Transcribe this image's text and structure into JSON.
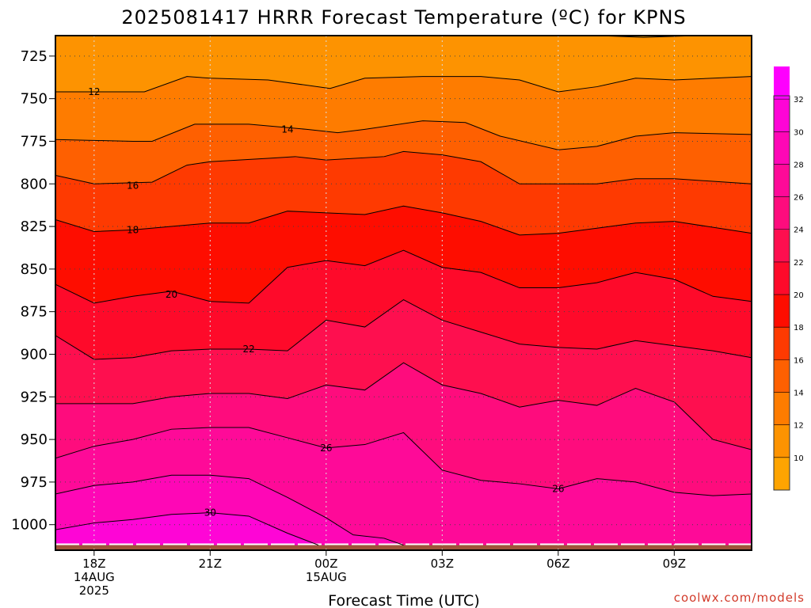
{
  "title": "2025081417 HRRR Forecast Temperature (ºC) for KPNS",
  "credit": "coolwx.com/models",
  "chart_data": {
    "type": "heatmap",
    "subtype": "filled-contour time-height cross section",
    "title": "2025081417 HRRR Forecast Temperature (ºC) for KPNS",
    "xlabel": "Forecast Time (UTC)",
    "ylabel": "",
    "x_axis": {
      "range_hours_from_18Z": [
        -1,
        17
      ],
      "ticks": [
        {
          "hour": 0,
          "lines": [
            "18Z",
            "14AUG",
            "2025"
          ]
        },
        {
          "hour": 3,
          "lines": [
            "21Z"
          ]
        },
        {
          "hour": 6,
          "lines": [
            "00Z",
            "15AUG"
          ]
        },
        {
          "hour": 9,
          "lines": [
            "03Z"
          ]
        },
        {
          "hour": 12,
          "lines": [
            "06Z"
          ]
        },
        {
          "hour": 15,
          "lines": [
            "09Z"
          ]
        }
      ]
    },
    "y_axis": {
      "unit": "hPa",
      "range": [
        1015,
        713
      ],
      "ticks": [
        725,
        750,
        775,
        800,
        825,
        850,
        875,
        900,
        925,
        950,
        975,
        1000
      ]
    },
    "grid": "dotted",
    "colorbar": {
      "placement": "right",
      "bins": [
        {
          "upper": 10,
          "color": "#fea401"
        },
        {
          "upper": 12,
          "color": "#fd9301"
        },
        {
          "upper": 14,
          "color": "#fe7c00"
        },
        {
          "upper": 16,
          "color": "#fe6001"
        },
        {
          "upper": 18,
          "color": "#fe3a01"
        },
        {
          "upper": 20,
          "color": "#fe0d00"
        },
        {
          "upper": 22,
          "color": "#fe0a2a"
        },
        {
          "upper": 24,
          "color": "#fe0f4f"
        },
        {
          "upper": 26,
          "color": "#fe0c7d"
        },
        {
          "upper": 28,
          "color": "#fe0a98"
        },
        {
          "upper": 30,
          "color": "#fe07b6"
        },
        {
          "upper": 32,
          "color": "#fe05d6"
        },
        {
          "upper": 34,
          "color": "#fe00fe"
        }
      ],
      "labels": [
        10,
        12,
        14,
        16,
        18,
        20,
        22,
        24,
        26,
        28,
        30,
        32
      ]
    },
    "ground": {
      "color": "#a0543a",
      "pressure_approx": 1012
    },
    "contours": [
      {
        "value": 10,
        "label": "",
        "points": [
          [
            9.5,
            713
          ],
          [
            13.0,
            713
          ],
          [
            14.2,
            714
          ],
          [
            15.6,
            713
          ]
        ]
      },
      {
        "value": 12,
        "label": "12",
        "label_at": [
          0.0,
          746
        ],
        "points": [
          [
            -1,
            746
          ],
          [
            0.3,
            746
          ],
          [
            1.3,
            746
          ],
          [
            2.4,
            737
          ],
          [
            3.0,
            738
          ],
          [
            4.5,
            739
          ],
          [
            6.1,
            744
          ],
          [
            7.0,
            738
          ],
          [
            8.5,
            737
          ],
          [
            10.0,
            737
          ],
          [
            11.0,
            739
          ],
          [
            12.0,
            746
          ],
          [
            13.0,
            743
          ],
          [
            14.0,
            738
          ],
          [
            15.0,
            739
          ],
          [
            17,
            737
          ]
        ]
      },
      {
        "value": 14,
        "label": "14",
        "label_at": [
          5.0,
          768
        ],
        "points": [
          [
            -1,
            774
          ],
          [
            1.0,
            775
          ],
          [
            1.5,
            775
          ],
          [
            2.6,
            765
          ],
          [
            4.0,
            765
          ],
          [
            5.5,
            768
          ],
          [
            6.3,
            770
          ],
          [
            7.0,
            768
          ],
          [
            8.5,
            763
          ],
          [
            9.6,
            764
          ],
          [
            10.5,
            772
          ],
          [
            12.0,
            780
          ],
          [
            13.0,
            778
          ],
          [
            14.0,
            772
          ],
          [
            15.0,
            770
          ],
          [
            17,
            771
          ]
        ]
      },
      {
        "value": 16,
        "label": "16",
        "label_at": [
          1.0,
          801
        ],
        "points": [
          [
            -1,
            795
          ],
          [
            0.0,
            800
          ],
          [
            1.5,
            799
          ],
          [
            2.4,
            789
          ],
          [
            3.0,
            787
          ],
          [
            4.5,
            785
          ],
          [
            5.2,
            784
          ],
          [
            6.0,
            786
          ],
          [
            7.5,
            784
          ],
          [
            8.0,
            781
          ],
          [
            9.0,
            783
          ],
          [
            10.0,
            787
          ],
          [
            11.0,
            800
          ],
          [
            12.0,
            800
          ],
          [
            13.0,
            800
          ],
          [
            14.0,
            797
          ],
          [
            15.0,
            797
          ],
          [
            17,
            800
          ]
        ]
      },
      {
        "value": 18,
        "label": "18",
        "label_at": [
          1.0,
          827
        ],
        "points": [
          [
            -1,
            821
          ],
          [
            0.0,
            828
          ],
          [
            1.0,
            827
          ],
          [
            2.0,
            825
          ],
          [
            3.0,
            823
          ],
          [
            4.0,
            823
          ],
          [
            5.0,
            816
          ],
          [
            6.0,
            817
          ],
          [
            7.0,
            818
          ],
          [
            8.0,
            813
          ],
          [
            9.0,
            817
          ],
          [
            10.0,
            822
          ],
          [
            11.0,
            830
          ],
          [
            12.0,
            829
          ],
          [
            13.0,
            826
          ],
          [
            14.0,
            823
          ],
          [
            15.0,
            822
          ],
          [
            17,
            829
          ]
        ]
      },
      {
        "value": 20,
        "label": "20",
        "label_at": [
          2.0,
          865
        ],
        "points": [
          [
            -1,
            859
          ],
          [
            0.0,
            870
          ],
          [
            1.0,
            866
          ],
          [
            2.0,
            863
          ],
          [
            3.0,
            869
          ],
          [
            4.0,
            870
          ],
          [
            5.0,
            849
          ],
          [
            6.0,
            845
          ],
          [
            7.0,
            848
          ],
          [
            8.0,
            839
          ],
          [
            9.0,
            849
          ],
          [
            10.0,
            852
          ],
          [
            11.0,
            861
          ],
          [
            12.0,
            861
          ],
          [
            13.0,
            858
          ],
          [
            14.0,
            852
          ],
          [
            15.0,
            856
          ],
          [
            16.0,
            866
          ],
          [
            17,
            869
          ]
        ]
      },
      {
        "value": 22,
        "label": "22",
        "label_at": [
          4.0,
          897
        ],
        "points": [
          [
            -1,
            889
          ],
          [
            0.0,
            903
          ],
          [
            1.0,
            902
          ],
          [
            2.0,
            898
          ],
          [
            3.0,
            897
          ],
          [
            4.0,
            897
          ],
          [
            5.0,
            898
          ],
          [
            6.0,
            880
          ],
          [
            7.0,
            884
          ],
          [
            8.0,
            868
          ],
          [
            9.0,
            880
          ],
          [
            10.0,
            887
          ],
          [
            11.0,
            894
          ],
          [
            12.0,
            896
          ],
          [
            13.0,
            897
          ],
          [
            14.0,
            892
          ],
          [
            15.0,
            895
          ],
          [
            16.0,
            898
          ],
          [
            17,
            902
          ]
        ]
      },
      {
        "value": 24,
        "label": "",
        "points": [
          [
            -1,
            929
          ],
          [
            1.0,
            929
          ],
          [
            2.0,
            925
          ],
          [
            3.0,
            923
          ],
          [
            4.0,
            923
          ],
          [
            5.0,
            926
          ],
          [
            6.0,
            918
          ],
          [
            7.0,
            921
          ],
          [
            8.0,
            905
          ],
          [
            9.0,
            918
          ],
          [
            10.0,
            923
          ],
          [
            11.0,
            931
          ],
          [
            12.0,
            927
          ],
          [
            13.0,
            930
          ],
          [
            14.0,
            920
          ],
          [
            15.0,
            928
          ],
          [
            16.0,
            950
          ],
          [
            17,
            956
          ]
        ]
      },
      {
        "value": 26,
        "label": "26",
        "label_at": [
          6.0,
          955
        ],
        "points": [
          [
            -1,
            961
          ],
          [
            0.0,
            954
          ],
          [
            1.0,
            950
          ],
          [
            2.0,
            944
          ],
          [
            3.0,
            943
          ],
          [
            4.0,
            943
          ],
          [
            5.0,
            949
          ],
          [
            6.0,
            955
          ],
          [
            7.0,
            953
          ],
          [
            8.0,
            946
          ],
          [
            9.0,
            968
          ],
          [
            10.0,
            974
          ],
          [
            11.0,
            976
          ],
          [
            12.0,
            979
          ],
          [
            13.0,
            973
          ],
          [
            14.0,
            975
          ],
          [
            15.0,
            981
          ],
          [
            16.0,
            983
          ],
          [
            17,
            982
          ]
        ]
      },
      {
        "value": 26,
        "label": "26",
        "label_at": [
          12.0,
          979
        ],
        "points": []
      },
      {
        "value": 28,
        "label": "",
        "points": [
          [
            -1,
            982
          ],
          [
            0.0,
            977
          ],
          [
            1.0,
            975
          ],
          [
            2.0,
            971
          ],
          [
            3.0,
            971
          ],
          [
            4.0,
            973
          ],
          [
            5.0,
            984
          ],
          [
            6.0,
            996
          ],
          [
            6.7,
            1006
          ],
          [
            7.5,
            1008
          ],
          [
            8.0,
            1012
          ]
        ]
      },
      {
        "value": 30,
        "label": "30",
        "label_at": [
          3.0,
          993
        ],
        "points": [
          [
            -1,
            1003
          ],
          [
            0.0,
            999
          ],
          [
            1.0,
            997
          ],
          [
            2.0,
            994
          ],
          [
            3.0,
            993
          ],
          [
            4.0,
            995
          ],
          [
            5.0,
            1005
          ],
          [
            5.8,
            1012
          ]
        ]
      }
    ]
  }
}
